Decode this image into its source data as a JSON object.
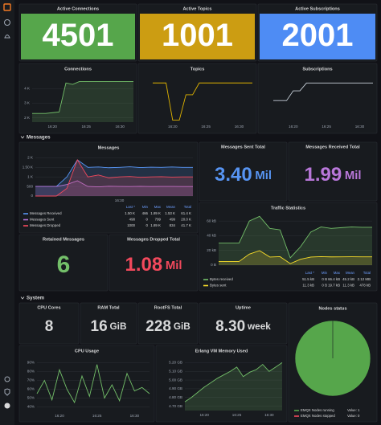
{
  "top_stats": [
    {
      "title": "Active Connections",
      "value": "4501",
      "color": "#56a64b"
    },
    {
      "title": "Active Topics",
      "value": "1001",
      "color": "#cc9d12"
    },
    {
      "title": "Active Subscriptions",
      "value": "2001",
      "color": "#4e8cf4"
    }
  ],
  "rows": [
    "Messages",
    "System"
  ],
  "message_stats": [
    {
      "title": "Messages Sent Total",
      "value": "3.40",
      "unit": "Mil",
      "color": "#5794f2"
    },
    {
      "title": "Messages Received Total",
      "value": "1.99",
      "unit": "Mil",
      "color": "#b877d9"
    },
    {
      "title": "Retained Messages",
      "value": "6",
      "color": "#73bf69"
    },
    {
      "title": "Messages Dropped Total",
      "value": "1.08",
      "unit": "Mil",
      "color": "#f2495c"
    }
  ],
  "system_stats": [
    {
      "title": "CPU Cores",
      "value": "8",
      "color": "#d8d9da"
    },
    {
      "title": "RAM Total",
      "value": "16",
      "unit": "GiB",
      "color": "#d8d9da"
    },
    {
      "title": "RootFS Total",
      "value": "228",
      "unit": "GiB",
      "color": "#d8d9da"
    },
    {
      "title": "Uptime",
      "value": "8.30",
      "unit": "week",
      "color": "#d8d9da"
    }
  ],
  "charts": [
    {
      "type": "line",
      "title": "Connections",
      "fill": true,
      "categories": [
        null,
        null,
        null,
        "16:20",
        null,
        null,
        null,
        null,
        "16:25",
        null,
        null,
        null,
        null,
        "16:30",
        null,
        null
      ],
      "series": [
        {
          "color": "#73bf69",
          "values": [
            2300,
            2300,
            2300,
            2350,
            2400,
            4400,
            4300,
            4500,
            4500,
            4500,
            4500,
            4500,
            4500,
            4500,
            4500,
            4500
          ]
        }
      ],
      "ylim": [
        1700,
        4800
      ],
      "yticks": [
        {
          "value": 2000,
          "label": "2 K"
        },
        {
          "value": 3000,
          "label": "3 K"
        },
        {
          "value": 4000,
          "label": "4 K"
        }
      ]
    },
    {
      "type": "line",
      "title": "Topics",
      "fill": false,
      "categories": [
        null,
        null,
        null,
        "16:20",
        null,
        null,
        null,
        null,
        "16:25",
        null,
        null,
        null,
        null,
        "16:30",
        null,
        null
      ],
      "series": [
        {
          "color": "#e0b400",
          "values": [
            1001,
            1001,
            1001,
            50,
            50,
            700,
            700,
            1001,
            1001,
            1001,
            1001,
            1001,
            1001,
            1001,
            1001,
            1001
          ]
        }
      ],
      "ylim": [
        0,
        1150
      ]
    },
    {
      "type": "line",
      "title": "Subscriptions",
      "fill": false,
      "categories": [
        null,
        null,
        null,
        "16:20",
        null,
        null,
        null,
        null,
        "16:25",
        null,
        null,
        null,
        null,
        "16:30",
        null,
        null
      ],
      "series": [
        {
          "color": "#c7d0d9",
          "values": [
            1100,
            1100,
            1100,
            1600,
            1600,
            2001,
            2001,
            2001,
            2001,
            2001,
            2001,
            2001,
            2001,
            2001,
            2001,
            2001
          ]
        }
      ],
      "ylim": [
        0,
        2300
      ]
    },
    {
      "type": "line",
      "title": "Messages",
      "fill": true,
      "categories": [
        null,
        null,
        null,
        null,
        null,
        null,
        null,
        null,
        "16:30",
        null,
        null,
        null,
        null,
        null,
        null,
        null
      ],
      "legend_columns": [
        "Last *",
        "Min",
        "Max",
        "Mean",
        "Total"
      ],
      "series": [
        {
          "name": "Messages Received",
          "color": "#5794f2",
          "values": [
            500,
            500,
            500,
            1000,
            1890,
            1500,
            1520,
            1480,
            1500,
            1530,
            1490,
            1510,
            1500,
            1520,
            1500,
            1500
          ],
          "stats": [
            "1.50 K",
            "466",
            "1.89 K",
            "1.53 K",
            "61.4 K"
          ]
        },
        {
          "name": "Messages Sent",
          "color": "#b877d9",
          "values": [
            500,
            500,
            500,
            600,
            799,
            500,
            480,
            510,
            500,
            498,
            505,
            495,
            500,
            502,
            498,
            498
          ],
          "stats": [
            "498",
            "0",
            "799",
            "499",
            "20.0 K"
          ]
        },
        {
          "name": "Messages Dropped",
          "color": "#f2495c",
          "values": [
            0,
            0,
            0,
            400,
            1890,
            1000,
            1100,
            950,
            1000,
            1020,
            980,
            1000,
            1010,
            990,
            1000,
            1000
          ],
          "stats": [
            "1000",
            "0",
            "1.89 K",
            "834",
            "41.7 K"
          ]
        }
      ],
      "ylim": [
        0,
        2100
      ],
      "yticks": [
        0,
        500,
        {
          "value": 1000,
          "label": "1 K"
        },
        {
          "value": 1500,
          "label": "1.50 K"
        },
        {
          "value": 2000,
          "label": "2 K"
        }
      ]
    },
    {
      "type": "line",
      "title": "Traffic Statistics",
      "fill": true,
      "categories": [
        null,
        null,
        null,
        null,
        null,
        null,
        null,
        null,
        null,
        null,
        null,
        null,
        null,
        null,
        null,
        null
      ],
      "legend_columns": [
        "Last *",
        "Min",
        "Max",
        "Mean",
        "Total"
      ],
      "series": [
        {
          "name": "Bytes received",
          "color": "#73bf69",
          "values": [
            30000,
            30000,
            30000,
            60000,
            66400,
            50000,
            48000,
            10000,
            25000,
            45000,
            52000,
            50000,
            51000,
            52000,
            51500,
            51500
          ],
          "stats": [
            "51.5 kB",
            "0 B",
            "66.4 kB",
            "45.2 kB",
            "2.12 MB"
          ]
        },
        {
          "name": "Bytes sent",
          "color": "#fade2a",
          "values": [
            5000,
            5000,
            5000,
            15000,
            19700,
            11000,
            11500,
            2000,
            8000,
            11000,
            11500,
            11200,
            11300,
            11400,
            11300,
            11300
          ],
          "stats": [
            "11.3 kB",
            "0 B",
            "19.7 kB",
            "11.3 kB",
            "478 kB"
          ]
        }
      ],
      "ylim": [
        0,
        70000
      ],
      "yticks": [
        {
          "value": 0,
          "label": "0 B"
        },
        {
          "value": 20000,
          "label": "20 kB"
        },
        {
          "value": 40000,
          "label": "40 kB"
        },
        {
          "value": 60000,
          "label": "60 kB"
        }
      ]
    },
    {
      "type": "line",
      "title": "CPU Usage",
      "fill": false,
      "categories": [
        null,
        null,
        null,
        "16:20",
        null,
        null,
        null,
        null,
        "16:25",
        null,
        null,
        null,
        null,
        "16:30",
        null,
        null
      ],
      "series": [
        {
          "color": "#73bf69",
          "values": [
            55,
            70,
            48,
            82,
            60,
            45,
            75,
            52,
            88,
            50,
            65,
            47,
            78,
            58,
            62,
            55
          ]
        }
      ],
      "ylim": [
        35,
        95
      ],
      "yticks": [
        {
          "value": 40,
          "label": "40%"
        },
        {
          "value": 50,
          "label": "50%"
        },
        {
          "value": 60,
          "label": "60%"
        },
        {
          "value": 70,
          "label": "70%"
        },
        {
          "value": 80,
          "label": "80%"
        },
        {
          "value": 90,
          "label": "90%"
        }
      ]
    },
    {
      "type": "line",
      "title": "Erlang VM Memory Used",
      "fill": true,
      "categories": [
        null,
        null,
        null,
        "16:20",
        null,
        null,
        null,
        null,
        "16:25",
        null,
        null,
        null,
        null,
        "16:30",
        null,
        null
      ],
      "series": [
        {
          "color": "#73bf69",
          "values": [
            4.75,
            4.8,
            4.86,
            4.92,
            4.97,
            5.02,
            5.06,
            5.1,
            5.15,
            5.04,
            5.09,
            5.12,
            5.18,
            5.1,
            5.15,
            5.2
          ]
        }
      ],
      "ylim": [
        4.65,
        5.25
      ],
      "yticks": [
        {
          "value": 4.7,
          "label": "4.70 GB"
        },
        {
          "value": 4.8,
          "label": "4.80 GB"
        },
        {
          "value": 4.9,
          "label": "4.90 GB"
        },
        {
          "value": 5.0,
          "label": "5.00 GB"
        },
        {
          "value": 5.1,
          "label": "5.10 GB"
        },
        {
          "value": 5.2,
          "label": "5.20 GB"
        }
      ]
    }
  ],
  "nodes_status": {
    "type": "pie",
    "title": "Nodes status",
    "series": [
      {
        "name": "EMQX Nodes running",
        "color": "#56a64b"
      },
      {
        "name": "EMQX Nodes stopped",
        "color": "#f2495c"
      }
    ],
    "values": [
      1,
      0
    ],
    "value_labels": [
      "Value: 1",
      "Value: 0"
    ]
  }
}
